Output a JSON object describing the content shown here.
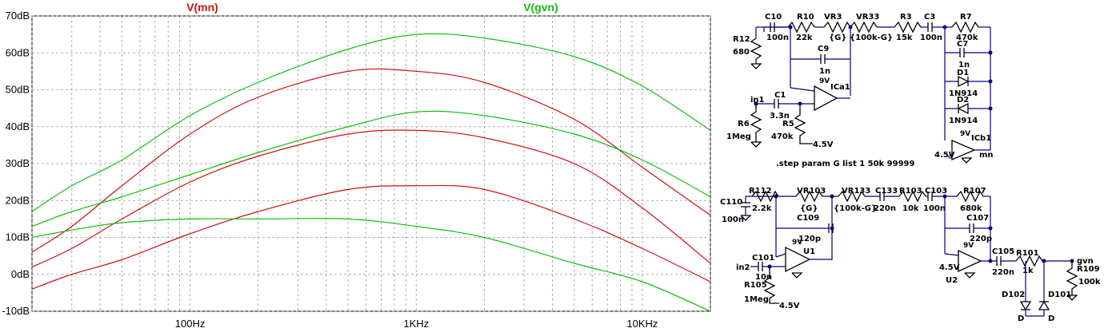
{
  "chart_data": {
    "type": "line",
    "traces_header": [
      {
        "label": "V(mn)",
        "color": "#d01010"
      },
      {
        "label": "V(gvn)",
        "color": "#10c010"
      }
    ],
    "x_scale": "log",
    "xlim": [
      20,
      20000
    ],
    "x_ticks": [
      {
        "value": 100,
        "label": "100Hz"
      },
      {
        "value": 1000,
        "label": "1KHz"
      },
      {
        "value": 10000,
        "label": "10KHz"
      }
    ],
    "ylim": [
      -10,
      70
    ],
    "y_ticks": [
      {
        "value": 70,
        "label": "70dB"
      },
      {
        "value": 60,
        "label": "60dB"
      },
      {
        "value": 50,
        "label": "50dB"
      },
      {
        "value": 40,
        "label": "40dB"
      },
      {
        "value": 30,
        "label": "30dB"
      },
      {
        "value": 20,
        "label": "20dB"
      },
      {
        "value": 10,
        "label": "10dB"
      },
      {
        "value": 0,
        "label": "0dB"
      },
      {
        "value": -10,
        "label": "-10dB"
      }
    ],
    "grid": true,
    "x": [
      20,
      30,
      50,
      100,
      200,
      500,
      1000,
      2000,
      5000,
      10000,
      20000
    ],
    "series": [
      {
        "trace": "V(mn)",
        "color": "#d01010",
        "values": [
          6,
          13,
          24,
          38,
          48,
          55,
          55,
          52,
          42,
          29,
          16
        ]
      },
      {
        "trace": "V(mn)",
        "color": "#d01010",
        "values": [
          2,
          7,
          15,
          25,
          32,
          38,
          39,
          37,
          30,
          18,
          3
        ]
      },
      {
        "trace": "V(mn)",
        "color": "#d01010",
        "values": [
          -4,
          0,
          4,
          11,
          17,
          23,
          24,
          23,
          15,
          7,
          -2
        ]
      },
      {
        "trace": "V(gvn)",
        "color": "#10c010",
        "values": [
          17,
          24,
          31,
          43,
          52,
          61,
          65,
          64,
          59,
          51,
          39
        ]
      },
      {
        "trace": "V(gvn)",
        "color": "#10c010",
        "values": [
          13,
          17,
          21,
          27,
          33,
          40,
          44,
          43,
          38,
          31,
          21
        ]
      },
      {
        "trace": "V(gvn)",
        "color": "#10c010",
        "values": [
          10,
          12,
          14,
          15,
          15,
          15,
          13,
          10,
          3,
          -2,
          -10
        ]
      }
    ]
  },
  "schematic": {
    "top": {
      "c10": {
        "name": "C10",
        "value": "100n"
      },
      "r10": {
        "name": "R10",
        "value": "22k"
      },
      "vr3": {
        "name": "VR3",
        "value": "{G}"
      },
      "vr33": {
        "name": "VR33",
        "value": "{100k-G}"
      },
      "r3": {
        "name": "R3",
        "value": "15k"
      },
      "c3": {
        "name": "C3",
        "value": "100n"
      },
      "r7": {
        "name": "R7",
        "value": "470k"
      },
      "r12": {
        "name": "R12",
        "value": "680"
      },
      "c9": {
        "name": "C9",
        "value": "1n"
      },
      "ic": {
        "name": "ICa1",
        "supply": "9V"
      },
      "in": "in1",
      "c1": {
        "name": "C1",
        "value": "3.3n"
      },
      "r6": {
        "name": "R6",
        "value": "1Meg"
      },
      "r5": {
        "name": "R5",
        "value": "470k"
      },
      "bias": "4.5V",
      "c7": {
        "name": "C7",
        "value": "1n"
      },
      "d1": {
        "name": "D1",
        "value": "1N914"
      },
      "d2": {
        "name": "D2",
        "value": "1N914"
      },
      "ic2": {
        "name": "ICb1",
        "supply": "9V"
      },
      "bias2": "4.5V",
      "out": "mn"
    },
    "directive": ".step param G list 1 50k 99999",
    "bottom": {
      "c110": {
        "name": "C110",
        "value": "100n"
      },
      "r112": {
        "name": "R112",
        "value": "2.2k"
      },
      "vr103": {
        "name": "VR103",
        "value": "{G}"
      },
      "vr133": {
        "name": "VR133",
        "value": "{100k-G}"
      },
      "c133": {
        "name": "C133",
        "value": "220n"
      },
      "r103": {
        "name": "R103",
        "value": "10k"
      },
      "c103": {
        "name": "C103",
        "value": "100n"
      },
      "r107": {
        "name": "R107",
        "value": "680k"
      },
      "c109": {
        "name": "C109",
        "value": "120p"
      },
      "u1": {
        "name": "U1",
        "supply": "9V"
      },
      "in": "in2",
      "c101": {
        "name": "C101",
        "value": "10n"
      },
      "r105": {
        "name": "R105",
        "value": "1Meg"
      },
      "bias": "4.5V",
      "c107": {
        "name": "C107",
        "value": "220p"
      },
      "u2": {
        "name": "U2",
        "supply": "9V"
      },
      "bias2": "4.5V",
      "c105": {
        "name": "C105",
        "value": "220n"
      },
      "r101": {
        "name": "R101",
        "value": "1k"
      },
      "out": "gvn",
      "r109": {
        "name": "R109",
        "value": "100k"
      },
      "d102": {
        "name": "D102",
        "value": "D"
      },
      "d101": {
        "name": "D101",
        "value": "D"
      }
    }
  }
}
